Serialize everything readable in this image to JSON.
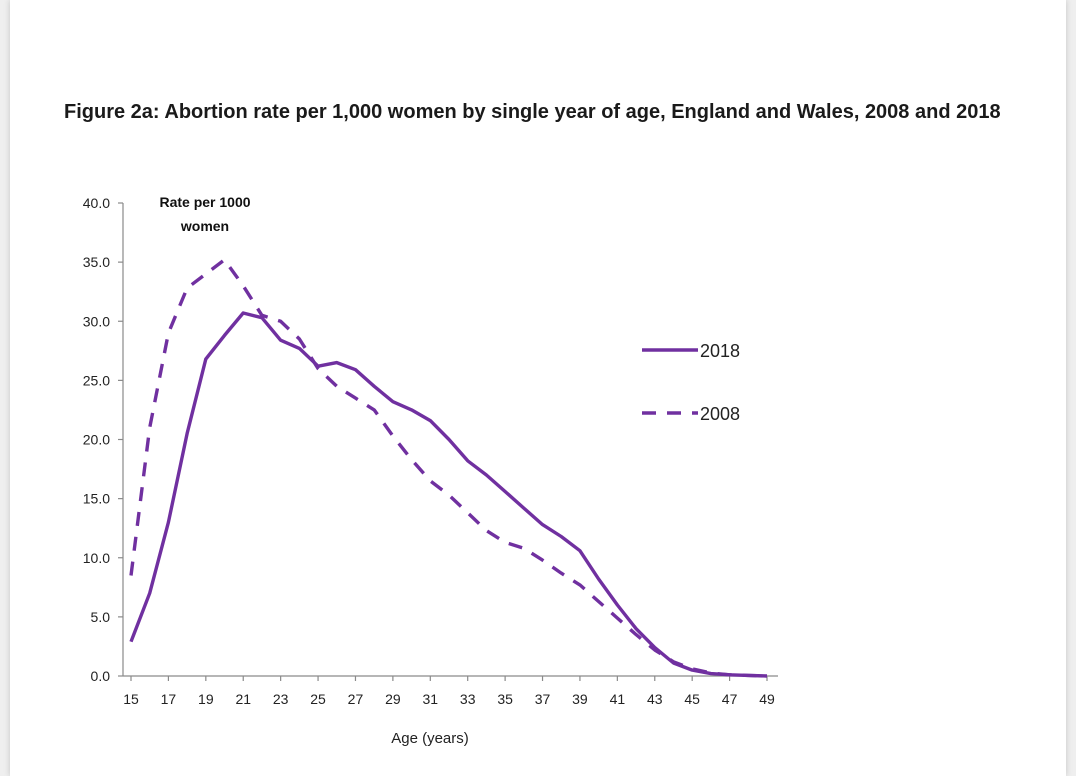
{
  "chart_data": {
    "type": "line",
    "title": "Figure 2a: Abortion rate per 1,000 women by single year of age, England and Wales, 2008 and 2018",
    "ylabel_lines": [
      "Rate per 1000",
      "women"
    ],
    "xlabel": "Age (years)",
    "ylim": [
      0,
      40
    ],
    "xlim": [
      15,
      49
    ],
    "yticks": [
      "0.0",
      "5.0",
      "10.0",
      "15.0",
      "20.0",
      "25.0",
      "30.0",
      "35.0",
      "40.0"
    ],
    "xticks": [
      15,
      17,
      19,
      21,
      23,
      25,
      27,
      29,
      31,
      33,
      35,
      37,
      39,
      41,
      43,
      45,
      47,
      49
    ],
    "grid": false,
    "legend_position": "right",
    "series": [
      {
        "name": "2018",
        "style": "solid",
        "color": "#7030a0",
        "x": [
          15,
          16,
          17,
          18,
          19,
          20,
          21,
          22,
          23,
          24,
          25,
          26,
          27,
          28,
          29,
          30,
          31,
          32,
          33,
          34,
          35,
          36,
          37,
          38,
          39,
          40,
          41,
          42,
          43,
          44,
          45,
          46,
          47,
          48,
          49
        ],
        "values": [
          2.9,
          7.0,
          13.0,
          20.5,
          26.8,
          28.8,
          30.7,
          30.3,
          28.4,
          27.7,
          26.2,
          26.5,
          25.9,
          24.5,
          23.2,
          22.5,
          21.6,
          20.0,
          18.2,
          17.0,
          15.6,
          14.2,
          12.8,
          11.8,
          10.6,
          8.2,
          6.0,
          4.0,
          2.4,
          1.1,
          0.5,
          0.2,
          0.1,
          0.05,
          0.0
        ]
      },
      {
        "name": "2008",
        "style": "dashed",
        "color": "#7030a0",
        "x": [
          15,
          16,
          17,
          18,
          19,
          20,
          21,
          22,
          23,
          24,
          25,
          26,
          27,
          28,
          29,
          30,
          31,
          32,
          33,
          34,
          35,
          36,
          37,
          38,
          39,
          40,
          41,
          42,
          43,
          44,
          45,
          46,
          47,
          48,
          49
        ],
        "values": [
          8.5,
          21.0,
          29.0,
          32.8,
          34.0,
          35.2,
          33.0,
          30.5,
          30.0,
          28.5,
          26.0,
          24.5,
          23.5,
          22.5,
          20.3,
          18.3,
          16.5,
          15.3,
          13.8,
          12.3,
          11.3,
          10.8,
          9.8,
          8.7,
          7.7,
          6.3,
          4.9,
          3.5,
          2.2,
          1.2,
          0.6,
          0.25,
          0.1,
          0.05,
          0.0
        ]
      }
    ]
  }
}
